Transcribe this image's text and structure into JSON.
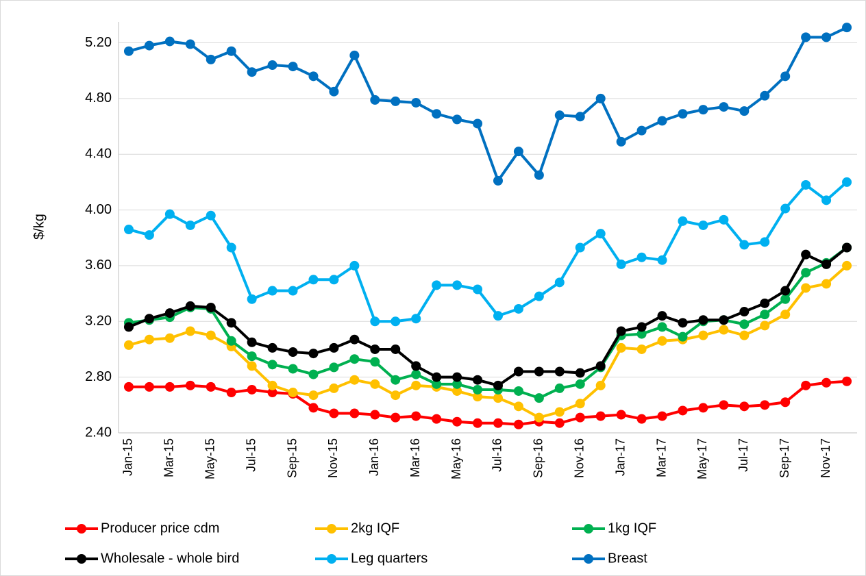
{
  "chart_data": {
    "type": "line",
    "y_label": "$/kg",
    "categories": [
      "Jan-15",
      null,
      "Mar-15",
      null,
      "May-15",
      null,
      "Jul-15",
      null,
      "Sep-15",
      null,
      "Nov-15",
      null,
      "Jan-16",
      null,
      "Mar-16",
      null,
      "May-16",
      null,
      "Jul-16",
      null,
      "Sep-16",
      null,
      "Nov-16",
      null,
      "Jan-17",
      null,
      "Mar-17",
      null,
      "May-17",
      null,
      "Jul-17",
      null,
      "Sep-17",
      null,
      "Nov-17",
      null
    ],
    "series": [
      {
        "name": "Producer price cdm",
        "color": "#ff0000",
        "values": [
          2.73,
          2.73,
          2.73,
          2.74,
          2.73,
          2.69,
          2.71,
          2.69,
          2.68,
          2.58,
          2.54,
          2.54,
          2.53,
          2.51,
          2.52,
          2.5,
          2.48,
          2.47,
          2.47,
          2.46,
          2.48,
          2.47,
          2.51,
          2.52,
          2.53,
          2.5,
          2.52,
          2.56,
          2.58,
          2.6,
          2.59,
          2.6,
          2.62,
          2.74,
          2.76,
          2.77
        ]
      },
      {
        "name": "2kg IQF",
        "color": "#ffc000",
        "values": [
          3.03,
          3.07,
          3.08,
          3.13,
          3.1,
          3.02,
          2.88,
          2.74,
          2.69,
          2.67,
          2.72,
          2.78,
          2.75,
          2.67,
          2.74,
          2.73,
          2.7,
          2.66,
          2.65,
          2.59,
          2.51,
          2.55,
          2.61,
          2.74,
          3.01,
          3.0,
          3.06,
          3.07,
          3.1,
          3.14,
          3.1,
          3.17,
          3.25,
          3.44,
          3.47,
          3.6
        ]
      },
      {
        "name": "1kg IQF",
        "color": "#00b050",
        "values": [
          3.19,
          3.21,
          3.23,
          3.3,
          3.29,
          3.06,
          2.95,
          2.89,
          2.86,
          2.82,
          2.87,
          2.93,
          2.91,
          2.78,
          2.82,
          2.75,
          2.75,
          2.71,
          2.71,
          2.7,
          2.65,
          2.72,
          2.75,
          2.87,
          3.1,
          3.11,
          3.16,
          3.09,
          3.2,
          3.21,
          3.18,
          3.25,
          3.36,
          3.55,
          3.62,
          3.73
        ]
      },
      {
        "name": "Wholesale - whole bird",
        "color": "#000000",
        "values": [
          3.16,
          3.22,
          3.26,
          3.31,
          3.3,
          3.19,
          3.05,
          3.01,
          2.98,
          2.97,
          3.01,
          3.07,
          3.0,
          3.0,
          2.88,
          2.8,
          2.8,
          2.78,
          2.74,
          2.84,
          2.84,
          2.84,
          2.83,
          2.88,
          3.13,
          3.16,
          3.24,
          3.19,
          3.21,
          3.21,
          3.27,
          3.33,
          3.42,
          3.68,
          3.61,
          3.73
        ]
      },
      {
        "name": "Leg quarters",
        "color": "#00b0f0",
        "values": [
          3.86,
          3.82,
          3.97,
          3.89,
          3.96,
          3.73,
          3.36,
          3.42,
          3.42,
          3.5,
          3.5,
          3.6,
          3.2,
          3.2,
          3.22,
          3.46,
          3.46,
          3.43,
          3.24,
          3.29,
          3.38,
          3.48,
          3.73,
          3.83,
          3.61,
          3.66,
          3.64,
          3.92,
          3.89,
          3.93,
          3.75,
          3.77,
          4.01,
          4.18,
          4.07,
          4.2
        ]
      },
      {
        "name": "Breast",
        "color": "#0070c0",
        "values": [
          5.14,
          5.18,
          5.21,
          5.19,
          5.08,
          5.14,
          4.99,
          5.04,
          5.03,
          4.96,
          4.85,
          5.11,
          4.79,
          4.78,
          4.77,
          4.69,
          4.65,
          4.62,
          4.21,
          4.42,
          4.25,
          4.68,
          4.67,
          4.8,
          4.49,
          4.57,
          4.64,
          4.69,
          4.72,
          4.74,
          4.71,
          4.82,
          4.96,
          5.24,
          5.24,
          5.31
        ]
      }
    ],
    "ylim": [
      2.4,
      5.35
    ],
    "yticks": [
      {
        "value": 2.4,
        "label": "2.40"
      },
      {
        "value": 2.8,
        "label": "2.80"
      },
      {
        "value": 3.2,
        "label": "3.20"
      },
      {
        "value": 3.6,
        "label": "3.60"
      },
      {
        "value": 4.0,
        "label": "4.00"
      },
      {
        "value": 4.4,
        "label": "4.40"
      },
      {
        "value": 4.8,
        "label": "4.80"
      },
      {
        "value": 5.2,
        "label": "5.20"
      }
    ],
    "grid": true,
    "legend": "bottom"
  }
}
